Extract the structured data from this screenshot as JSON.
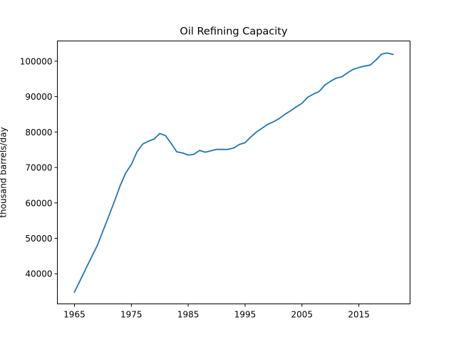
{
  "chart_data": {
    "type": "line",
    "title": "Oil Refining Capacity",
    "xlabel": "",
    "ylabel": "thousand barrels/day",
    "xlim": [
      1962,
      2024
    ],
    "ylim": [
      31500,
      105700
    ],
    "x_ticks": [
      1965,
      1975,
      1985,
      1995,
      2005,
      2015
    ],
    "y_ticks": [
      40000,
      50000,
      60000,
      70000,
      80000,
      90000,
      100000
    ],
    "grid": false,
    "legend": "none",
    "series": [
      {
        "color": "#1f77b4",
        "x": [
          1965,
          1966,
          1967,
          1968,
          1969,
          1970,
          1971,
          1972,
          1973,
          1974,
          1975,
          1976,
          1977,
          1978,
          1979,
          1980,
          1981,
          1982,
          1983,
          1984,
          1985,
          1986,
          1987,
          1988,
          1989,
          1990,
          1991,
          1992,
          1993,
          1994,
          1995,
          1996,
          1997,
          1998,
          1999,
          2000,
          2001,
          2002,
          2003,
          2004,
          2005,
          2006,
          2007,
          2008,
          2009,
          2010,
          2011,
          2012,
          2013,
          2014,
          2015,
          2016,
          2017,
          2018,
          2019,
          2020,
          2021
        ],
        "y": [
          34800,
          38100,
          41400,
          44700,
          47900,
          52000,
          56100,
          60300,
          64700,
          68400,
          70800,
          74400,
          76600,
          77400,
          78000,
          79600,
          79000,
          76800,
          74400,
          74100,
          73500,
          73700,
          74800,
          74300,
          74700,
          75100,
          75100,
          75100,
          75500,
          76500,
          77000,
          78600,
          80000,
          81100,
          82200,
          82900,
          83800,
          85000,
          86000,
          87100,
          88100,
          89800,
          90700,
          91400,
          93200,
          94300,
          95200,
          95600,
          96700,
          97700,
          98200,
          98600,
          98900,
          100300,
          102000,
          102300,
          101900
        ]
      }
    ]
  }
}
